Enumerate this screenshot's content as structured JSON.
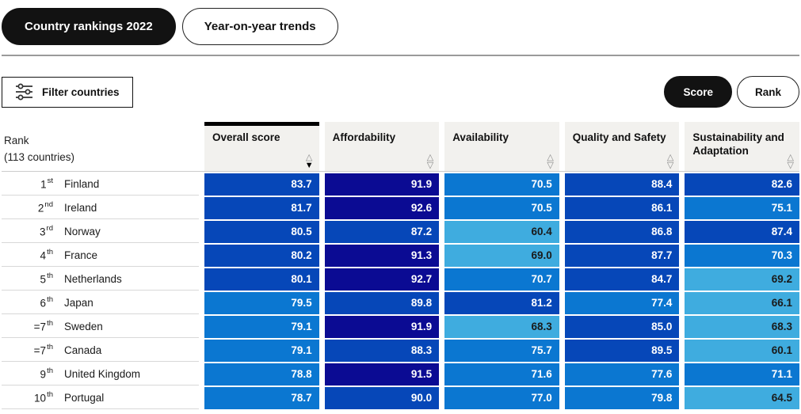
{
  "tabs": [
    {
      "label": "Country rankings 2022",
      "active": true
    },
    {
      "label": "Year-on-year trends",
      "active": false
    }
  ],
  "toolbar": {
    "filter_label": "Filter countries",
    "score_label": "Score",
    "rank_label": "Rank"
  },
  "table": {
    "rank_header_line1": "Rank",
    "rank_header_line2": "(113 countries)",
    "columns": [
      {
        "label": "Overall score",
        "active": true,
        "sort": "desc"
      },
      {
        "label": "Affordability",
        "active": false,
        "sort": "none"
      },
      {
        "label": "Availability",
        "active": false,
        "sort": "none"
      },
      {
        "label": "Quality and Safety",
        "active": false,
        "sort": "none"
      },
      {
        "label": "Sustainability and Adaptation",
        "active": false,
        "sort": "none"
      }
    ],
    "rows": [
      {
        "rank": "1",
        "ordinal": "st",
        "country": "Finland",
        "values": [
          "83.7",
          "91.9",
          "70.5",
          "88.4",
          "82.6"
        ]
      },
      {
        "rank": "2",
        "ordinal": "nd",
        "country": "Ireland",
        "values": [
          "81.7",
          "92.6",
          "70.5",
          "86.1",
          "75.1"
        ]
      },
      {
        "rank": "3",
        "ordinal": "rd",
        "country": "Norway",
        "values": [
          "80.5",
          "87.2",
          "60.4",
          "86.8",
          "87.4"
        ]
      },
      {
        "rank": "4",
        "ordinal": "th",
        "country": "France",
        "values": [
          "80.2",
          "91.3",
          "69.0",
          "87.7",
          "70.3"
        ]
      },
      {
        "rank": "5",
        "ordinal": "th",
        "country": "Netherlands",
        "values": [
          "80.1",
          "92.7",
          "70.7",
          "84.7",
          "69.2"
        ]
      },
      {
        "rank": "6",
        "ordinal": "th",
        "country": "Japan",
        "values": [
          "79.5",
          "89.8",
          "81.2",
          "77.4",
          "66.1"
        ]
      },
      {
        "rank": "=7",
        "ordinal": "th",
        "country": "Sweden",
        "values": [
          "79.1",
          "91.9",
          "68.3",
          "85.0",
          "68.3"
        ]
      },
      {
        "rank": "=7",
        "ordinal": "th",
        "country": "Canada",
        "values": [
          "79.1",
          "88.3",
          "75.7",
          "89.5",
          "60.1"
        ]
      },
      {
        "rank": "9",
        "ordinal": "th",
        "country": "United Kingdom",
        "values": [
          "78.8",
          "91.5",
          "71.6",
          "77.6",
          "71.1"
        ]
      },
      {
        "rank": "10",
        "ordinal": "th",
        "country": "Portugal",
        "values": [
          "78.7",
          "90.0",
          "77.0",
          "79.8",
          "64.5"
        ]
      }
    ]
  },
  "colors": {
    "active_pill_bg": "#121212",
    "active_pill_text": "#ffffff",
    "header_cell_bg": "#f2f1ee",
    "active_sort_bar": "#000000",
    "row_divider": "#d8d8d8"
  },
  "color_scale": [
    {
      "gt": 90,
      "bg": "#0b0b93",
      "text": "#ffffff"
    },
    {
      "gt": 80,
      "bg": "#0647b8",
      "text": "#ffffff"
    },
    {
      "gt": 70,
      "bg": "#0b77d1",
      "text": "#ffffff"
    },
    {
      "gt": 0,
      "bg": "#3facdf",
      "text": "#1a1a1a"
    }
  ],
  "icons": {
    "filter": "sliders-icon",
    "sort_up_outline": "△",
    "sort_down_outline": "▽",
    "sort_down_solid": "▼"
  }
}
